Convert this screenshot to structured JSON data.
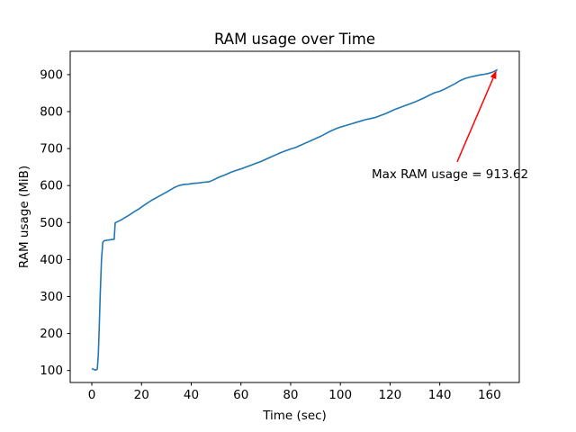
{
  "chart_data": {
    "type": "line",
    "title": "RAM usage over Time",
    "xlabel": "Time (sec)",
    "ylabel": "RAM usage (MiB)",
    "xlim": [
      -8.7,
      172
    ],
    "ylim": [
      67.6,
      963
    ],
    "xticks": [
      0,
      20,
      40,
      60,
      80,
      100,
      120,
      140,
      160
    ],
    "yticks": [
      100,
      200,
      300,
      400,
      500,
      600,
      700,
      800,
      900
    ],
    "grid": false,
    "legend": "none",
    "background_color": "#ffffff",
    "spine_color": "#000000",
    "series": [
      {
        "name": "RAM usage",
        "color": "#1f77b4",
        "x": [
          0,
          0.8,
          1.5,
          2.2,
          2.6,
          3.0,
          3.4,
          3.9,
          4.4,
          5,
          6,
          7,
          8,
          9,
          9.4,
          10.5,
          11.5,
          13,
          15,
          17,
          19,
          21.5,
          24,
          27,
          30,
          33,
          35,
          37,
          39,
          41,
          43,
          45,
          47,
          48.5,
          51,
          54,
          56,
          58,
          60,
          62,
          64,
          66,
          68,
          70,
          72,
          74,
          76,
          78,
          80,
          82,
          84,
          86,
          88,
          90,
          92,
          94,
          96,
          98,
          100,
          102,
          104,
          106,
          108,
          110,
          112,
          114,
          116,
          118,
          120,
          122,
          124,
          126,
          128,
          130,
          132,
          134,
          136,
          138,
          140,
          142,
          144,
          146,
          148,
          150,
          152,
          154,
          156,
          158,
          159.5,
          161,
          162,
          162.8,
          163.2
        ],
        "y": [
          105,
          103,
          101,
          104,
          140,
          220,
          310,
          400,
          446,
          451,
          452,
          453,
          454,
          455,
          499,
          503,
          506,
          512,
          520,
          529,
          537,
          549,
          560,
          571,
          582,
          594,
          600,
          603,
          604,
          606,
          607,
          609,
          610,
          614,
          622,
          630,
          636,
          641,
          645,
          650,
          655,
          660,
          665,
          671,
          677,
          683,
          689,
          694,
          699,
          703,
          709,
          715,
          721,
          727,
          733,
          740,
          747,
          753,
          758,
          762,
          766,
          770,
          774,
          778,
          781,
          784,
          789,
          794,
          800,
          806,
          811,
          816,
          821,
          826,
          832,
          838,
          845,
          851,
          855,
          861,
          868,
          875,
          883,
          889,
          893,
          896,
          899,
          901,
          903,
          906,
          909,
          912,
          913.62
        ]
      }
    ],
    "annotation": {
      "label": "Max RAM usage = 913.62",
      "max_value": 913.62,
      "point_xy": [
        163.2,
        913.62
      ],
      "text_xy": [
        112.6,
        620
      ],
      "arrow_from": [
        147,
        664
      ],
      "arrow_to": [
        162.8,
        911
      ],
      "color": "#ff0000"
    }
  }
}
